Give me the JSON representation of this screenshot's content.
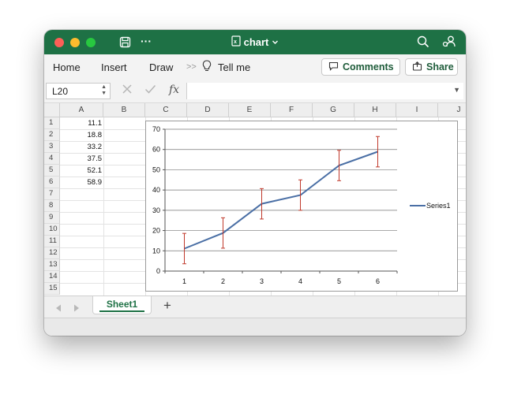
{
  "window": {
    "title": "chart"
  },
  "ribbon": {
    "tabs": [
      "Home",
      "Insert",
      "Draw"
    ],
    "more": ">>",
    "tell_me": "Tell me",
    "comments": "Comments",
    "share": "Share"
  },
  "formula_bar": {
    "name_box": "L20",
    "formula": ""
  },
  "columns": [
    "A",
    "B",
    "C",
    "D",
    "E",
    "F",
    "G",
    "H",
    "I",
    "J"
  ],
  "rows": [
    "1",
    "2",
    "3",
    "4",
    "5",
    "6",
    "7",
    "8",
    "9",
    "10",
    "11",
    "12",
    "13",
    "14",
    "15"
  ],
  "cells_A": [
    "11.1",
    "18.8",
    "33.2",
    "37.5",
    "52.1",
    "58.9"
  ],
  "sheets": {
    "tabs": [
      "Sheet1"
    ],
    "add": "+"
  },
  "chart_data": {
    "type": "line",
    "x": [
      1,
      2,
      3,
      4,
      5,
      6
    ],
    "x_tick_labels": [
      "1",
      "2",
      "3",
      "4",
      "5",
      "6"
    ],
    "y_tick_labels": [
      "0",
      "10",
      "20",
      "30",
      "40",
      "50",
      "60",
      "70"
    ],
    "series": [
      {
        "name": "Series1",
        "values": [
          11.1,
          18.8,
          33.2,
          37.5,
          52.1,
          58.9
        ],
        "error": 7.5,
        "color": "#4a6fa5",
        "error_color": "#c0392b"
      }
    ],
    "ylim": [
      0,
      70
    ],
    "grid": true,
    "legend": "right"
  }
}
